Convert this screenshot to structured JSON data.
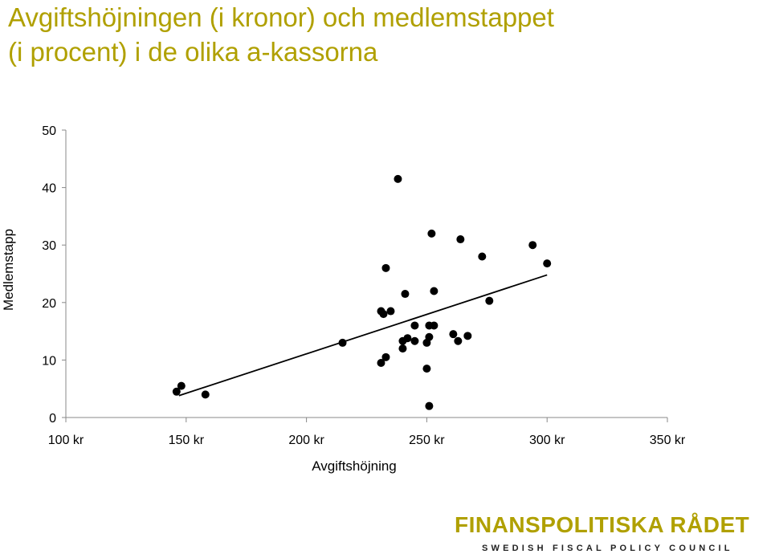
{
  "title": {
    "line1": "Avgiftshöjningen (i kronor) och medlemstappet",
    "line2": "(i procent) i de olika a-kassorna"
  },
  "logo": {
    "name": "FINANSPOLITISKA RÅDET",
    "subtitle": "SWEDISH FISCAL POLICY COUNCIL",
    "color": "#b0a000"
  },
  "chart_data": {
    "type": "scatter",
    "xlabel": "Avgiftshöjning",
    "ylabel": "Medlemstapp",
    "xlim": [
      100,
      350
    ],
    "ylim": [
      0,
      50
    ],
    "x_ticks": [
      "100 kr",
      "150 kr",
      "200 kr",
      "250 kr",
      "300 kr",
      "350 kr"
    ],
    "x_tick_values": [
      100,
      150,
      200,
      250,
      300,
      350
    ],
    "y_ticks": [
      "0",
      "10",
      "20",
      "30",
      "40",
      "50"
    ],
    "y_tick_values": [
      0,
      10,
      20,
      30,
      40,
      50
    ],
    "grid": false,
    "points": [
      {
        "x": 146,
        "y": 4.5
      },
      {
        "x": 148,
        "y": 5.5
      },
      {
        "x": 158,
        "y": 4
      },
      {
        "x": 215,
        "y": 13
      },
      {
        "x": 231,
        "y": 9.5
      },
      {
        "x": 233,
        "y": 10.5
      },
      {
        "x": 231,
        "y": 18.5
      },
      {
        "x": 232,
        "y": 18
      },
      {
        "x": 235,
        "y": 18.5
      },
      {
        "x": 233,
        "y": 26
      },
      {
        "x": 238,
        "y": 41.5
      },
      {
        "x": 240,
        "y": 12
      },
      {
        "x": 240,
        "y": 13.3
      },
      {
        "x": 242,
        "y": 13.8
      },
      {
        "x": 241,
        "y": 21.5
      },
      {
        "x": 245,
        "y": 16
      },
      {
        "x": 245,
        "y": 13.3
      },
      {
        "x": 250,
        "y": 13
      },
      {
        "x": 250,
        "y": 8.5
      },
      {
        "x": 251,
        "y": 14
      },
      {
        "x": 251,
        "y": 16
      },
      {
        "x": 253,
        "y": 16
      },
      {
        "x": 252,
        "y": 32
      },
      {
        "x": 253,
        "y": 22
      },
      {
        "x": 251,
        "y": 2
      },
      {
        "x": 261,
        "y": 14.5
      },
      {
        "x": 263,
        "y": 13.3
      },
      {
        "x": 264,
        "y": 31
      },
      {
        "x": 267,
        "y": 14.2
      },
      {
        "x": 273,
        "y": 28
      },
      {
        "x": 276,
        "y": 20.3
      },
      {
        "x": 294,
        "y": 30
      },
      {
        "x": 300,
        "y": 26.8
      }
    ],
    "trendline": {
      "x": [
        147,
        300
      ],
      "y": [
        3.8,
        24.8
      ]
    }
  }
}
